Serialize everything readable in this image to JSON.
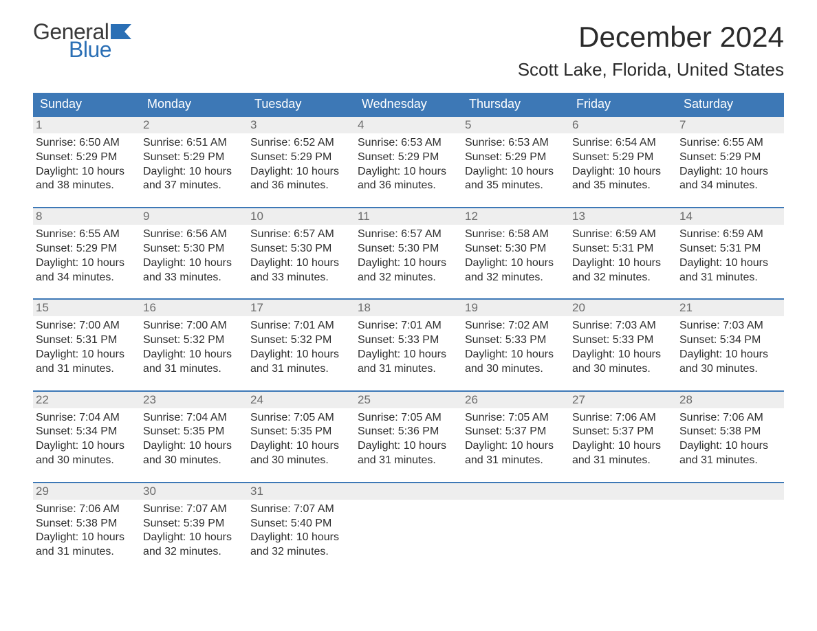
{
  "brand": {
    "word1": "General",
    "word2": "Blue"
  },
  "colors": {
    "brand_blue": "#2a6fb5",
    "header_blue": "#3d78b6",
    "row_grey": "#eeeeee",
    "text": "#2e2e2e",
    "daynum": "#6b6b6b",
    "white": "#ffffff"
  },
  "title": "December 2024",
  "location": "Scott Lake, Florida, United States",
  "days_of_week": [
    "Sunday",
    "Monday",
    "Tuesday",
    "Wednesday",
    "Thursday",
    "Friday",
    "Saturday"
  ],
  "calendar": {
    "type": "table",
    "columns": 7,
    "weeks": [
      [
        {
          "num": "1",
          "sunrise": "Sunrise: 6:50 AM",
          "sunset": "Sunset: 5:29 PM",
          "dl1": "Daylight: 10 hours",
          "dl2": "and 38 minutes."
        },
        {
          "num": "2",
          "sunrise": "Sunrise: 6:51 AM",
          "sunset": "Sunset: 5:29 PM",
          "dl1": "Daylight: 10 hours",
          "dl2": "and 37 minutes."
        },
        {
          "num": "3",
          "sunrise": "Sunrise: 6:52 AM",
          "sunset": "Sunset: 5:29 PM",
          "dl1": "Daylight: 10 hours",
          "dl2": "and 36 minutes."
        },
        {
          "num": "4",
          "sunrise": "Sunrise: 6:53 AM",
          "sunset": "Sunset: 5:29 PM",
          "dl1": "Daylight: 10 hours",
          "dl2": "and 36 minutes."
        },
        {
          "num": "5",
          "sunrise": "Sunrise: 6:53 AM",
          "sunset": "Sunset: 5:29 PM",
          "dl1": "Daylight: 10 hours",
          "dl2": "and 35 minutes."
        },
        {
          "num": "6",
          "sunrise": "Sunrise: 6:54 AM",
          "sunset": "Sunset: 5:29 PM",
          "dl1": "Daylight: 10 hours",
          "dl2": "and 35 minutes."
        },
        {
          "num": "7",
          "sunrise": "Sunrise: 6:55 AM",
          "sunset": "Sunset: 5:29 PM",
          "dl1": "Daylight: 10 hours",
          "dl2": "and 34 minutes."
        }
      ],
      [
        {
          "num": "8",
          "sunrise": "Sunrise: 6:55 AM",
          "sunset": "Sunset: 5:29 PM",
          "dl1": "Daylight: 10 hours",
          "dl2": "and 34 minutes."
        },
        {
          "num": "9",
          "sunrise": "Sunrise: 6:56 AM",
          "sunset": "Sunset: 5:30 PM",
          "dl1": "Daylight: 10 hours",
          "dl2": "and 33 minutes."
        },
        {
          "num": "10",
          "sunrise": "Sunrise: 6:57 AM",
          "sunset": "Sunset: 5:30 PM",
          "dl1": "Daylight: 10 hours",
          "dl2": "and 33 minutes."
        },
        {
          "num": "11",
          "sunrise": "Sunrise: 6:57 AM",
          "sunset": "Sunset: 5:30 PM",
          "dl1": "Daylight: 10 hours",
          "dl2": "and 32 minutes."
        },
        {
          "num": "12",
          "sunrise": "Sunrise: 6:58 AM",
          "sunset": "Sunset: 5:30 PM",
          "dl1": "Daylight: 10 hours",
          "dl2": "and 32 minutes."
        },
        {
          "num": "13",
          "sunrise": "Sunrise: 6:59 AM",
          "sunset": "Sunset: 5:31 PM",
          "dl1": "Daylight: 10 hours",
          "dl2": "and 32 minutes."
        },
        {
          "num": "14",
          "sunrise": "Sunrise: 6:59 AM",
          "sunset": "Sunset: 5:31 PM",
          "dl1": "Daylight: 10 hours",
          "dl2": "and 31 minutes."
        }
      ],
      [
        {
          "num": "15",
          "sunrise": "Sunrise: 7:00 AM",
          "sunset": "Sunset: 5:31 PM",
          "dl1": "Daylight: 10 hours",
          "dl2": "and 31 minutes."
        },
        {
          "num": "16",
          "sunrise": "Sunrise: 7:00 AM",
          "sunset": "Sunset: 5:32 PM",
          "dl1": "Daylight: 10 hours",
          "dl2": "and 31 minutes."
        },
        {
          "num": "17",
          "sunrise": "Sunrise: 7:01 AM",
          "sunset": "Sunset: 5:32 PM",
          "dl1": "Daylight: 10 hours",
          "dl2": "and 31 minutes."
        },
        {
          "num": "18",
          "sunrise": "Sunrise: 7:01 AM",
          "sunset": "Sunset: 5:33 PM",
          "dl1": "Daylight: 10 hours",
          "dl2": "and 31 minutes."
        },
        {
          "num": "19",
          "sunrise": "Sunrise: 7:02 AM",
          "sunset": "Sunset: 5:33 PM",
          "dl1": "Daylight: 10 hours",
          "dl2": "and 30 minutes."
        },
        {
          "num": "20",
          "sunrise": "Sunrise: 7:03 AM",
          "sunset": "Sunset: 5:33 PM",
          "dl1": "Daylight: 10 hours",
          "dl2": "and 30 minutes."
        },
        {
          "num": "21",
          "sunrise": "Sunrise: 7:03 AM",
          "sunset": "Sunset: 5:34 PM",
          "dl1": "Daylight: 10 hours",
          "dl2": "and 30 minutes."
        }
      ],
      [
        {
          "num": "22",
          "sunrise": "Sunrise: 7:04 AM",
          "sunset": "Sunset: 5:34 PM",
          "dl1": "Daylight: 10 hours",
          "dl2": "and 30 minutes."
        },
        {
          "num": "23",
          "sunrise": "Sunrise: 7:04 AM",
          "sunset": "Sunset: 5:35 PM",
          "dl1": "Daylight: 10 hours",
          "dl2": "and 30 minutes."
        },
        {
          "num": "24",
          "sunrise": "Sunrise: 7:05 AM",
          "sunset": "Sunset: 5:35 PM",
          "dl1": "Daylight: 10 hours",
          "dl2": "and 30 minutes."
        },
        {
          "num": "25",
          "sunrise": "Sunrise: 7:05 AM",
          "sunset": "Sunset: 5:36 PM",
          "dl1": "Daylight: 10 hours",
          "dl2": "and 31 minutes."
        },
        {
          "num": "26",
          "sunrise": "Sunrise: 7:05 AM",
          "sunset": "Sunset: 5:37 PM",
          "dl1": "Daylight: 10 hours",
          "dl2": "and 31 minutes."
        },
        {
          "num": "27",
          "sunrise": "Sunrise: 7:06 AM",
          "sunset": "Sunset: 5:37 PM",
          "dl1": "Daylight: 10 hours",
          "dl2": "and 31 minutes."
        },
        {
          "num": "28",
          "sunrise": "Sunrise: 7:06 AM",
          "sunset": "Sunset: 5:38 PM",
          "dl1": "Daylight: 10 hours",
          "dl2": "and 31 minutes."
        }
      ],
      [
        {
          "num": "29",
          "sunrise": "Sunrise: 7:06 AM",
          "sunset": "Sunset: 5:38 PM",
          "dl1": "Daylight: 10 hours",
          "dl2": "and 31 minutes."
        },
        {
          "num": "30",
          "sunrise": "Sunrise: 7:07 AM",
          "sunset": "Sunset: 5:39 PM",
          "dl1": "Daylight: 10 hours",
          "dl2": "and 32 minutes."
        },
        {
          "num": "31",
          "sunrise": "Sunrise: 7:07 AM",
          "sunset": "Sunset: 5:40 PM",
          "dl1": "Daylight: 10 hours",
          "dl2": "and 32 minutes."
        },
        {
          "empty": true
        },
        {
          "empty": true
        },
        {
          "empty": true
        },
        {
          "empty": true
        }
      ]
    ]
  }
}
